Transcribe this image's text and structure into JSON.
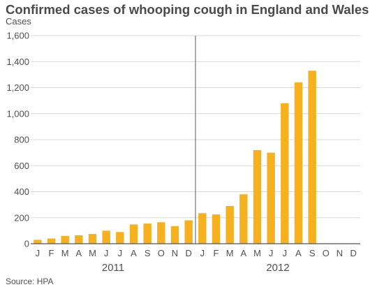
{
  "chart_data": {
    "type": "bar",
    "title": "Confirmed cases of whooping cough in England and Wales",
    "ylabel": "Cases",
    "xlabel": "",
    "ylim": [
      0,
      1600
    ],
    "yticks": [
      0,
      200,
      400,
      600,
      800,
      1000,
      1200,
      1400,
      1600
    ],
    "ytick_labels": [
      "0",
      "200",
      "400",
      "600",
      "800",
      "1,000",
      "1,200",
      "1,400",
      "1,600"
    ],
    "categories": [
      "J",
      "F",
      "M",
      "A",
      "M",
      "J",
      "J",
      "A",
      "S",
      "O",
      "N",
      "D",
      "J",
      "F",
      "M",
      "A",
      "M",
      "J",
      "J",
      "A",
      "S",
      "O",
      "N",
      "D"
    ],
    "values": [
      30,
      40,
      60,
      65,
      75,
      100,
      90,
      148,
      155,
      165,
      135,
      180,
      235,
      225,
      290,
      380,
      720,
      700,
      1080,
      1240,
      1330,
      null,
      null,
      null
    ],
    "year_groups": [
      {
        "label": "2011",
        "start": 0,
        "end": 11
      },
      {
        "label": "2012",
        "start": 12,
        "end": 23
      }
    ],
    "bar_color": "#f5b120",
    "grid": true,
    "source": "Source: HPA"
  }
}
